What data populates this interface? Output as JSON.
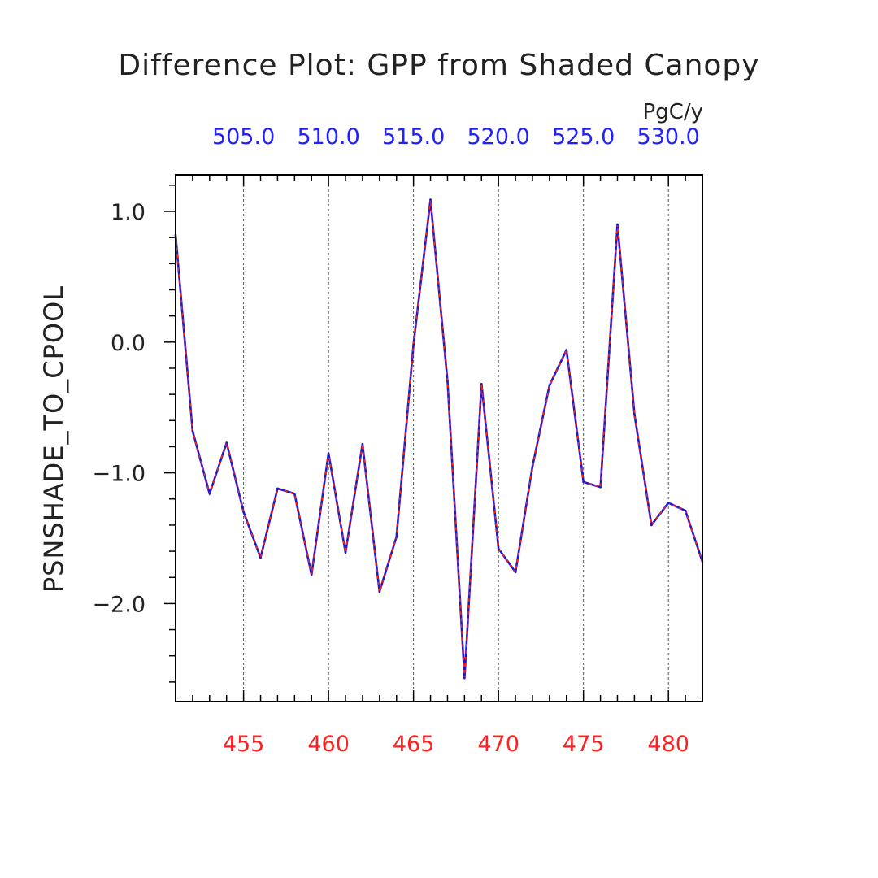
{
  "chart_data": {
    "type": "line",
    "title": "Difference Plot: GPP from Shaded Canopy",
    "units": "PgC/y",
    "ylabel": "PSNSHADE_TO_CPOOL",
    "xlabel": "",
    "xlim": [
      451,
      482
    ],
    "ylim": [
      -2.75,
      1.28
    ],
    "yticks": [
      {
        "value": 1.0,
        "label": "1.0"
      },
      {
        "value": 0.0,
        "label": "0.0"
      },
      {
        "value": -1.0,
        "label": "−1.0"
      },
      {
        "value": -2.0,
        "label": "−2.0"
      }
    ],
    "xticks_bottom": [
      {
        "value": 455,
        "label": "455"
      },
      {
        "value": 460,
        "label": "460"
      },
      {
        "value": 465,
        "label": "465"
      },
      {
        "value": 470,
        "label": "470"
      },
      {
        "value": 475,
        "label": "475"
      },
      {
        "value": 480,
        "label": "480"
      }
    ],
    "xticks_top": [
      {
        "value": 455,
        "label": "505.0"
      },
      {
        "value": 460,
        "label": "510.0"
      },
      {
        "value": 465,
        "label": "515.0"
      },
      {
        "value": 470,
        "label": "520.0"
      },
      {
        "value": 475,
        "label": "525.0"
      },
      {
        "value": 480,
        "label": "530.0"
      }
    ],
    "grid": "vertical dashed at major x ticks",
    "colors": {
      "bottom_axis": "#ff2020",
      "top_axis": "#2020ff",
      "line_outer": "#1a1acc",
      "line_inner": "#ff2020"
    },
    "x": [
      451,
      452,
      453,
      454,
      455,
      456,
      457,
      458,
      459,
      460,
      461,
      462,
      463,
      464,
      465,
      466,
      467,
      468,
      469,
      470,
      471,
      472,
      473,
      474,
      475,
      476,
      477,
      478,
      479,
      480,
      481,
      482
    ],
    "series": [
      {
        "values": [
          0.82,
          -0.68,
          -1.16,
          -0.77,
          -1.3,
          -1.65,
          -1.12,
          -1.16,
          -1.78,
          -0.85,
          -1.61,
          -0.78,
          -1.91,
          -1.49,
          -0.02,
          1.09,
          -0.3,
          -2.57,
          -0.32,
          -1.58,
          -1.76,
          -0.95,
          -0.33,
          -0.06,
          -1.07,
          -1.11,
          0.9,
          -0.55,
          -1.4,
          -1.23,
          -1.29,
          -1.68
        ]
      }
    ]
  }
}
